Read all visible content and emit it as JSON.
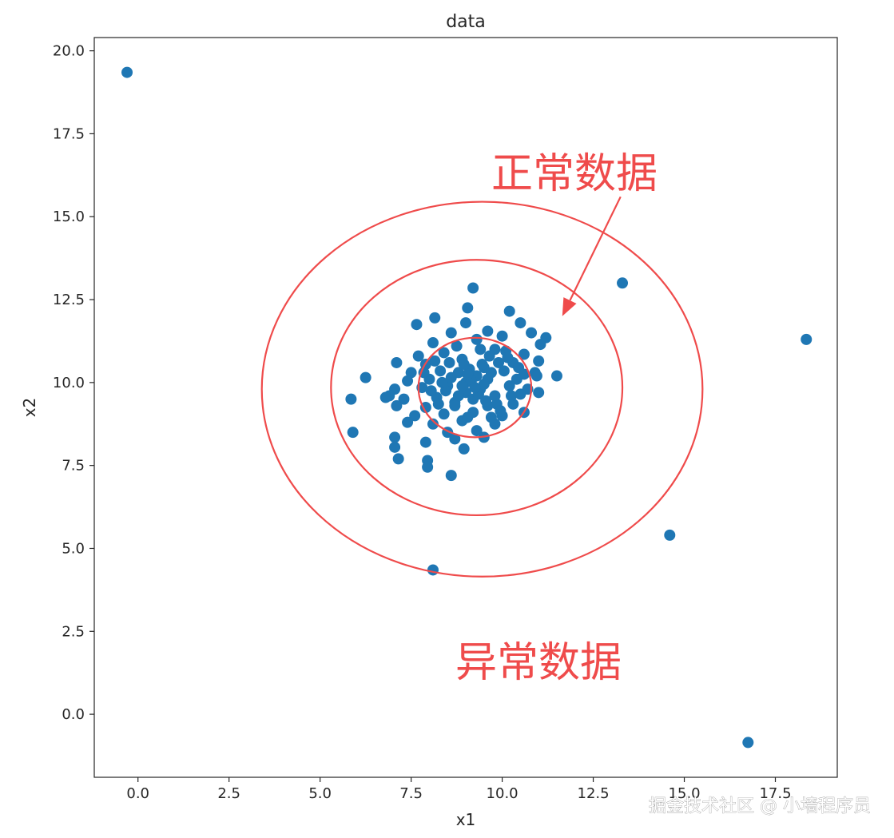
{
  "chart_data": {
    "type": "scatter",
    "title": "data",
    "xlabel": "x1",
    "ylabel": "x2",
    "xlim": [
      -1.2,
      19.2
    ],
    "ylim": [
      -1.9,
      20.4
    ],
    "xticks": [
      "0.0",
      "2.5",
      "5.0",
      "7.5",
      "10.0",
      "12.5",
      "15.0",
      "17.5"
    ],
    "yticks": [
      "0.0",
      "2.5",
      "5.0",
      "7.5",
      "10.0",
      "12.5",
      "15.0",
      "17.5",
      "20.0"
    ],
    "grid": false,
    "point_color": "#1f77b4",
    "outliers": [
      {
        "x": -0.3,
        "y": 19.35
      },
      {
        "x": 13.3,
        "y": 13.0
      },
      {
        "x": 18.35,
        "y": 11.3
      },
      {
        "x": 14.6,
        "y": 5.4
      },
      {
        "x": 8.1,
        "y": 4.35
      },
      {
        "x": 16.75,
        "y": -0.85
      }
    ],
    "normal_points": [
      {
        "x": 9.2,
        "y": 12.85
      },
      {
        "x": 9.05,
        "y": 12.25
      },
      {
        "x": 10.2,
        "y": 12.15
      },
      {
        "x": 8.15,
        "y": 11.95
      },
      {
        "x": 7.65,
        "y": 11.75
      },
      {
        "x": 9.0,
        "y": 11.8
      },
      {
        "x": 10.5,
        "y": 11.8
      },
      {
        "x": 8.6,
        "y": 11.5
      },
      {
        "x": 9.6,
        "y": 11.55
      },
      {
        "x": 10.8,
        "y": 11.5
      },
      {
        "x": 11.2,
        "y": 11.35
      },
      {
        "x": 8.1,
        "y": 11.2
      },
      {
        "x": 9.3,
        "y": 11.3
      },
      {
        "x": 10.0,
        "y": 11.4
      },
      {
        "x": 11.05,
        "y": 11.15
      },
      {
        "x": 7.7,
        "y": 10.8
      },
      {
        "x": 8.4,
        "y": 10.9
      },
      {
        "x": 9.8,
        "y": 11.0
      },
      {
        "x": 10.6,
        "y": 10.85
      },
      {
        "x": 7.1,
        "y": 10.6
      },
      {
        "x": 7.9,
        "y": 10.55
      },
      {
        "x": 8.9,
        "y": 10.7
      },
      {
        "x": 10.3,
        "y": 10.6
      },
      {
        "x": 11.0,
        "y": 10.65
      },
      {
        "x": 7.5,
        "y": 10.3
      },
      {
        "x": 8.3,
        "y": 10.35
      },
      {
        "x": 9.5,
        "y": 10.45
      },
      {
        "x": 10.9,
        "y": 10.3
      },
      {
        "x": 11.5,
        "y": 10.2
      },
      {
        "x": 6.25,
        "y": 10.15
      },
      {
        "x": 7.4,
        "y": 10.05
      },
      {
        "x": 8.0,
        "y": 10.1
      },
      {
        "x": 10.4,
        "y": 10.1
      },
      {
        "x": 10.95,
        "y": 10.2
      },
      {
        "x": 7.05,
        "y": 9.8
      },
      {
        "x": 7.8,
        "y": 9.85
      },
      {
        "x": 8.5,
        "y": 9.9
      },
      {
        "x": 9.0,
        "y": 10.0
      },
      {
        "x": 9.4,
        "y": 9.8
      },
      {
        "x": 10.2,
        "y": 9.9
      },
      {
        "x": 10.7,
        "y": 9.8
      },
      {
        "x": 6.9,
        "y": 9.6
      },
      {
        "x": 7.3,
        "y": 9.5
      },
      {
        "x": 8.2,
        "y": 9.55
      },
      {
        "x": 9.8,
        "y": 9.6
      },
      {
        "x": 10.5,
        "y": 9.65
      },
      {
        "x": 11.0,
        "y": 9.7
      },
      {
        "x": 5.85,
        "y": 9.5
      },
      {
        "x": 6.8,
        "y": 9.55
      },
      {
        "x": 7.1,
        "y": 9.3
      },
      {
        "x": 7.9,
        "y": 9.25
      },
      {
        "x": 8.7,
        "y": 9.4
      },
      {
        "x": 9.6,
        "y": 9.3
      },
      {
        "x": 10.3,
        "y": 9.35
      },
      {
        "x": 7.6,
        "y": 9.0
      },
      {
        "x": 8.4,
        "y": 9.05
      },
      {
        "x": 9.2,
        "y": 9.1
      },
      {
        "x": 10.0,
        "y": 9.0
      },
      {
        "x": 10.6,
        "y": 9.1
      },
      {
        "x": 7.4,
        "y": 8.8
      },
      {
        "x": 8.1,
        "y": 8.75
      },
      {
        "x": 8.9,
        "y": 8.85
      },
      {
        "x": 9.8,
        "y": 8.75
      },
      {
        "x": 8.5,
        "y": 8.5
      },
      {
        "x": 9.3,
        "y": 8.55
      },
      {
        "x": 5.9,
        "y": 8.5
      },
      {
        "x": 7.05,
        "y": 8.35
      },
      {
        "x": 7.9,
        "y": 8.2
      },
      {
        "x": 8.7,
        "y": 8.3
      },
      {
        "x": 9.5,
        "y": 8.35
      },
      {
        "x": 7.05,
        "y": 8.05
      },
      {
        "x": 8.95,
        "y": 8.0
      },
      {
        "x": 7.15,
        "y": 7.7
      },
      {
        "x": 7.95,
        "y": 7.65
      },
      {
        "x": 7.95,
        "y": 7.45
      },
      {
        "x": 8.6,
        "y": 7.2
      },
      {
        "x": 8.8,
        "y": 10.3
      },
      {
        "x": 9.1,
        "y": 10.4
      },
      {
        "x": 9.3,
        "y": 10.2
      },
      {
        "x": 9.6,
        "y": 10.1
      },
      {
        "x": 9.0,
        "y": 9.7
      },
      {
        "x": 9.2,
        "y": 9.5
      },
      {
        "x": 9.5,
        "y": 9.95
      },
      {
        "x": 8.8,
        "y": 9.6
      },
      {
        "x": 9.7,
        "y": 10.3
      },
      {
        "x": 8.6,
        "y": 10.15
      },
      {
        "x": 9.35,
        "y": 9.65
      },
      {
        "x": 9.15,
        "y": 10.05
      },
      {
        "x": 8.9,
        "y": 9.9
      },
      {
        "x": 9.45,
        "y": 10.55
      },
      {
        "x": 8.7,
        "y": 9.3
      },
      {
        "x": 9.9,
        "y": 10.6
      },
      {
        "x": 9.25,
        "y": 9.85
      },
      {
        "x": 9.05,
        "y": 10.25
      },
      {
        "x": 9.55,
        "y": 9.45
      },
      {
        "x": 8.95,
        "y": 10.55
      },
      {
        "x": 9.65,
        "y": 10.8
      },
      {
        "x": 8.55,
        "y": 10.6
      },
      {
        "x": 9.85,
        "y": 9.35
      },
      {
        "x": 8.45,
        "y": 9.75
      },
      {
        "x": 10.05,
        "y": 10.35
      },
      {
        "x": 8.35,
        "y": 10.0
      },
      {
        "x": 9.4,
        "y": 11.0
      },
      {
        "x": 8.75,
        "y": 11.1
      },
      {
        "x": 10.1,
        "y": 10.95
      },
      {
        "x": 9.95,
        "y": 9.15
      },
      {
        "x": 8.25,
        "y": 9.35
      },
      {
        "x": 9.05,
        "y": 8.95
      },
      {
        "x": 9.7,
        "y": 8.95
      },
      {
        "x": 10.25,
        "y": 9.6
      },
      {
        "x": 10.45,
        "y": 10.45
      },
      {
        "x": 7.85,
        "y": 10.3
      },
      {
        "x": 8.05,
        "y": 9.75
      },
      {
        "x": 8.15,
        "y": 10.65
      },
      {
        "x": 10.15,
        "y": 10.75
      },
      {
        "x": 10.6,
        "y": 10.25
      }
    ],
    "annotations": {
      "normal_label": "正常数据",
      "abnormal_label": "异常数据",
      "color": "#ef4b4b",
      "circles": [
        {
          "cx": 9.25,
          "cy": 9.85,
          "rx": 1.55,
          "ry": 1.5
        },
        {
          "cx": 9.3,
          "cy": 9.85,
          "rx": 4.0,
          "ry": 3.85
        },
        {
          "cx": 9.45,
          "cy": 9.8,
          "rx": 6.05,
          "ry": 5.65
        }
      ],
      "arrow_from": {
        "x": 13.25,
        "y": 15.6
      },
      "arrow_to": {
        "x": 11.65,
        "y": 12.0
      }
    }
  },
  "watermark": "掘金技术社区 @ 小墙程序员"
}
